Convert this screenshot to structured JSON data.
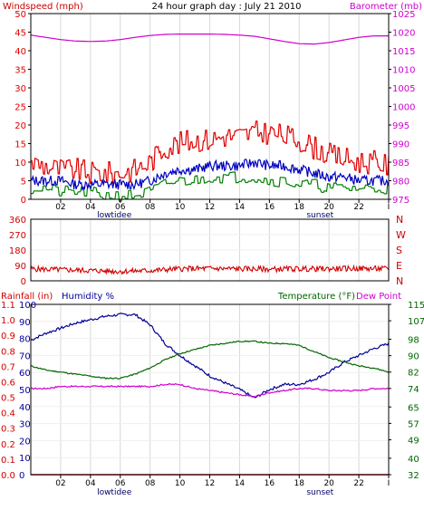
{
  "header": {
    "left_label": "Windspeed (mph)",
    "title": "24 hour graph day : July 21 2010",
    "right_label": "Barometer (mb)"
  },
  "colors": {
    "background": "#ffffff",
    "frame": "#000000",
    "grid": "#d8d8d8",
    "wind_gust": "#e00000",
    "wind_avg": "#008000",
    "wind_mean": "#0000c0",
    "barometer": "#d000d0",
    "direction": "#d00000",
    "rainfall": "#d00000",
    "humidity": "#000099",
    "temperature": "#006600",
    "dewpoint": "#d000d0"
  },
  "chart_data": [
    {
      "type": "line",
      "panel": "wind",
      "xlim": [
        0,
        24
      ],
      "x_ticks": [
        "02",
        "04",
        "06",
        "08",
        "10",
        "12",
        "14",
        "16",
        "18",
        "20",
        "22",
        "I"
      ],
      "annotations": [
        "lowtidee",
        "sunset"
      ],
      "ylabel": "Windspeed (mph)",
      "ylim": [
        0,
        50
      ],
      "y_ticks": [
        0,
        5,
        10,
        15,
        20,
        25,
        30,
        35,
        40,
        45,
        50
      ],
      "y2label": "Barometer (mb)",
      "y2lim": [
        975,
        1025
      ],
      "y2_ticks": [
        975,
        980,
        985,
        990,
        995,
        1000,
        1005,
        1010,
        1015,
        1020,
        1025
      ],
      "grid": true,
      "series": [
        {
          "axis": "left",
          "x": [
            0,
            1,
            2,
            3,
            4,
            5,
            6,
            7,
            8,
            9,
            10,
            11,
            12,
            13,
            14,
            15,
            16,
            17,
            18,
            19,
            20,
            21,
            22,
            23,
            24
          ],
          "values": [
            10,
            9,
            8,
            8,
            7,
            7,
            7,
            8,
            10,
            14,
            15,
            16,
            16,
            17,
            17,
            18,
            18,
            17,
            16,
            14,
            12,
            11,
            10,
            10,
            9
          ]
        },
        {
          "axis": "left",
          "x": [
            0,
            1,
            2,
            3,
            4,
            5,
            6,
            7,
            8,
            9,
            10,
            11,
            12,
            13,
            14,
            15,
            16,
            17,
            18,
            19,
            20,
            21,
            22,
            23,
            24
          ],
          "values": [
            5,
            5,
            5,
            4,
            4,
            4,
            4,
            4,
            5,
            7,
            8,
            8,
            9,
            9,
            9,
            10,
            9,
            9,
            8,
            7,
            6,
            6,
            5,
            5,
            5
          ]
        },
        {
          "axis": "left",
          "x": [
            0,
            1,
            2,
            3,
            4,
            5,
            6,
            7,
            8,
            9,
            10,
            11,
            12,
            13,
            14,
            15,
            16,
            17,
            18,
            19,
            20,
            21,
            22,
            23,
            24
          ],
          "values": [
            3,
            3,
            2,
            2,
            2,
            1,
            1,
            1,
            2,
            4,
            5,
            5,
            6,
            6,
            6,
            6,
            5,
            5,
            4,
            4,
            3,
            3,
            3,
            3,
            3
          ]
        },
        {
          "axis": "right",
          "x": [
            0,
            1,
            2,
            3,
            4,
            5,
            6,
            7,
            8,
            9,
            10,
            11,
            12,
            13,
            14,
            15,
            16,
            17,
            18,
            19,
            20,
            21,
            22,
            23,
            24
          ],
          "values": [
            1019.2,
            1018.6,
            1018.0,
            1017.6,
            1017.5,
            1017.6,
            1018.0,
            1018.6,
            1019.1,
            1019.4,
            1019.5,
            1019.5,
            1019.5,
            1019.4,
            1019.2,
            1018.9,
            1018.2,
            1017.5,
            1016.9,
            1016.8,
            1017.2,
            1017.9,
            1018.6,
            1019.0,
            1019.0
          ]
        }
      ]
    },
    {
      "type": "line",
      "panel": "direction",
      "xlim": [
        0,
        24
      ],
      "ylim": [
        0,
        360
      ],
      "y_ticks": [
        0,
        90,
        180,
        270,
        360
      ],
      "y2_ticks": [
        "N",
        "W",
        "S",
        "E",
        "N"
      ],
      "grid": true,
      "series": [
        {
          "x": [
            0,
            2,
            4,
            6,
            8,
            10,
            12,
            14,
            16,
            18,
            20,
            22,
            24
          ],
          "values": [
            70,
            65,
            60,
            55,
            60,
            70,
            72,
            70,
            68,
            70,
            70,
            72,
            70
          ]
        }
      ]
    },
    {
      "type": "line",
      "panel": "temp_humidity",
      "xlim": [
        0,
        24
      ],
      "x_ticks": [
        "02",
        "04",
        "06",
        "08",
        "10",
        "12",
        "14",
        "16",
        "18",
        "20",
        "22",
        "I"
      ],
      "annotations": [
        "lowtidee",
        "sunset"
      ],
      "ylabels": [
        "Rainfall (in)",
        "Humidity %"
      ],
      "y_ticks_rain": [
        0.0,
        0.1,
        0.2,
        0.3,
        0.4,
        0.5,
        0.6,
        0.7,
        0.8,
        0.9,
        1.0,
        1.1
      ],
      "y_ticks_humidity": [
        0,
        10,
        20,
        30,
        40,
        50,
        60,
        70,
        80,
        90,
        100
      ],
      "y2label": "Temperature (°F)",
      "y2label_extra": "Dew Point",
      "y2lim": [
        32,
        115
      ],
      "y2_ticks": [
        32,
        40,
        49,
        57,
        65,
        74,
        82,
        90,
        98,
        107,
        115
      ],
      "grid": true,
      "series": [
        {
          "axis": "rain",
          "x": [
            0,
            24
          ],
          "values": [
            0.0,
            0.0
          ]
        },
        {
          "axis": "humidity",
          "x": [
            0,
            1,
            2,
            3,
            4,
            5,
            6,
            7,
            8,
            9,
            10,
            11,
            12,
            13,
            14,
            15,
            16,
            17,
            18,
            19,
            20,
            21,
            22,
            23,
            24
          ],
          "values": [
            79,
            83,
            86,
            89,
            91,
            93,
            94,
            94,
            88,
            77,
            70,
            64,
            58,
            54,
            50,
            45,
            50,
            53,
            53,
            56,
            60,
            66,
            70,
            74,
            77
          ]
        },
        {
          "axis": "right",
          "x": [
            0,
            1,
            2,
            3,
            4,
            5,
            6,
            7,
            8,
            9,
            10,
            11,
            12,
            13,
            14,
            15,
            16,
            17,
            18,
            19,
            20,
            21,
            22,
            23,
            24
          ],
          "values": [
            85,
            83,
            82,
            81,
            80,
            79,
            79,
            81,
            84,
            88,
            91,
            93,
            95,
            96,
            97,
            97,
            96,
            96,
            95,
            92,
            89,
            87,
            85,
            84,
            82
          ]
        },
        {
          "axis": "right",
          "x": [
            0,
            1,
            2,
            3,
            4,
            5,
            6,
            7,
            8,
            9,
            10,
            11,
            12,
            13,
            14,
            15,
            16,
            17,
            18,
            19,
            20,
            21,
            22,
            23,
            24
          ],
          "values": [
            74,
            74,
            75,
            75,
            75,
            75,
            75,
            75,
            75,
            76,
            76,
            74,
            73,
            72,
            71,
            70,
            72,
            73,
            74,
            74,
            73,
            73,
            73,
            74,
            74
          ]
        }
      ]
    }
  ]
}
